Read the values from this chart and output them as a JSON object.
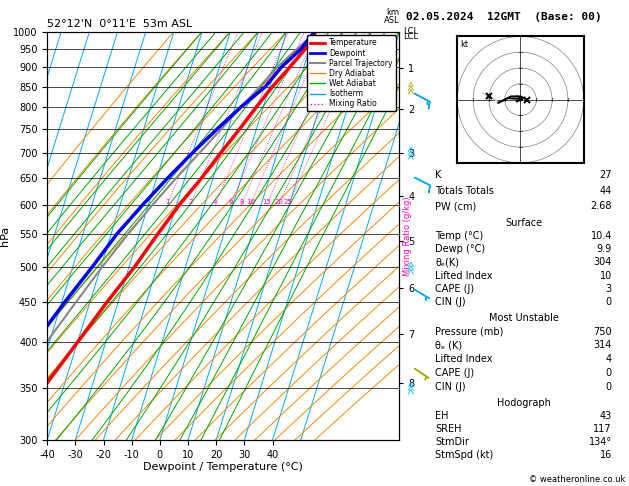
{
  "title_left": "52°12'N  0°11'E  53m ASL",
  "title_right": "02.05.2024  12GMT  (Base: 00)",
  "xlabel": "Dewpoint / Temperature (°C)",
  "ylabel_left": "hPa",
  "isotherm_color": "#00aaff",
  "dry_adiabat_color": "#ff8800",
  "wet_adiabat_color": "#00aa00",
  "mixing_ratio_color": "#ff00bb",
  "mixing_ratio_values": [
    1,
    2,
    4,
    6,
    8,
    10,
    15,
    20,
    25
  ],
  "temp_profile_color": "#ff0000",
  "dewp_profile_color": "#0000ff",
  "parcel_color": "#888888",
  "legend_items": [
    {
      "label": "Temperature",
      "color": "#ff0000",
      "lw": 2,
      "ls": "-"
    },
    {
      "label": "Dewpoint",
      "color": "#0000ff",
      "lw": 2,
      "ls": "-"
    },
    {
      "label": "Parcel Trajectory",
      "color": "#888888",
      "lw": 1.5,
      "ls": "-"
    },
    {
      "label": "Dry Adiabat",
      "color": "#ff8800",
      "lw": 1,
      "ls": "-"
    },
    {
      "label": "Wet Adiabat",
      "color": "#00aa00",
      "lw": 1,
      "ls": "-"
    },
    {
      "label": "Isotherm",
      "color": "#00aaff",
      "lw": 1,
      "ls": "-"
    },
    {
      "label": "Mixing Ratio",
      "color": "#ff00bb",
      "lw": 1,
      "ls": ":"
    }
  ],
  "pressure_levels": [
    300,
    350,
    400,
    450,
    500,
    550,
    600,
    650,
    700,
    750,
    800,
    850,
    900,
    950,
    1000
  ],
  "km_press": {
    "1": 899,
    "2": 795,
    "3": 700,
    "4": 616,
    "5": 540,
    "6": 470,
    "7": 410,
    "8": 355
  },
  "temp_profile_p": [
    1000,
    950,
    900,
    850,
    800,
    750,
    700,
    650,
    600,
    550,
    500,
    450,
    400,
    350,
    300
  ],
  "temp_profile_T": [
    10.4,
    8.5,
    5.0,
    1.0,
    -2.5,
    -6.0,
    -10.0,
    -14.0,
    -19.0,
    -23.5,
    -28.0,
    -34.0,
    -40.0,
    -47.0,
    -53.0
  ],
  "dewp_profile_p": [
    1000,
    950,
    900,
    850,
    800,
    750,
    700,
    650,
    600,
    550,
    500,
    450,
    400,
    350,
    300
  ],
  "dewp_profile_T": [
    9.9,
    7.0,
    2.0,
    -1.5,
    -8.0,
    -14.0,
    -20.0,
    -26.0,
    -32.0,
    -38.0,
    -43.0,
    -49.0,
    -55.0,
    -60.0,
    -65.0
  ],
  "parcel_p": [
    1000,
    950,
    900,
    850,
    800,
    750,
    700,
    650,
    600,
    550,
    500,
    450,
    400,
    350,
    300
  ],
  "parcel_T": [
    10.4,
    5.5,
    0.5,
    -3.5,
    -8.0,
    -12.5,
    -17.5,
    -23.0,
    -28.5,
    -34.0,
    -39.5,
    -45.0,
    -51.0,
    -57.5,
    -64.0
  ],
  "surface_data": {
    "K": 27,
    "Totals_Totals": 44,
    "PW_cm": 2.68,
    "Temp_C": 10.4,
    "Dewp_C": 9.9,
    "theta_e_K": 304,
    "Lifted_Index": 10,
    "CAPE_J": 3,
    "CIN_J": 0
  },
  "most_unstable": {
    "Pressure_mb": 750,
    "theta_e_K": 314,
    "Lifted_Index": 4,
    "CAPE_J": 0,
    "CIN_J": 0
  },
  "hodograph": {
    "EH": 43,
    "SREH": 117,
    "StmDir": 134,
    "StmSpd_kt": 16
  },
  "copyright": "© weatheronline.co.uk",
  "wind_barbs": [
    {
      "pressure": 350,
      "color": "#00bbff",
      "u": -15,
      "v": 5
    },
    {
      "pressure": 500,
      "color": "#00bbff",
      "u": -10,
      "v": 3
    },
    {
      "pressure": 700,
      "color": "#00bbff",
      "u": -5,
      "v": 2
    },
    {
      "pressure": 850,
      "color": "#aaaa00",
      "u": -3,
      "v": 1
    }
  ]
}
